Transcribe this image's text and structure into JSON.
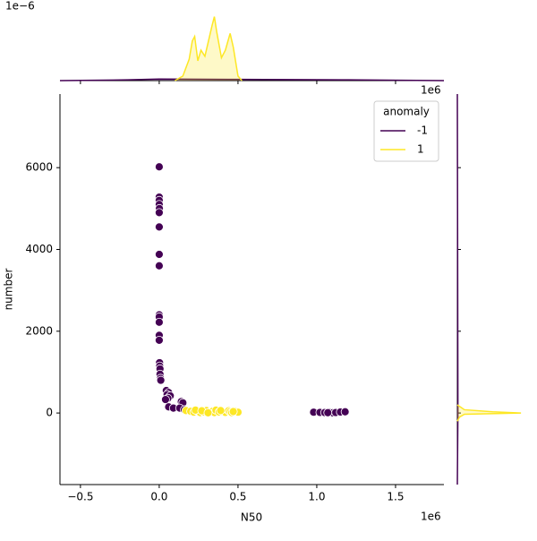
{
  "chart_data": {
    "type": "scatter",
    "xlabel": "N50",
    "ylabel": "number",
    "x_offset_label": "1e6",
    "top_offset_label": "1e−6",
    "right_offset_label": "1e6",
    "xlim": [
      -630000,
      1807000
    ],
    "ylim": [
      -1750,
      7800
    ],
    "xticks": [
      {
        "value": -500000,
        "label": "−0.5"
      },
      {
        "value": 0,
        "label": "0.0"
      },
      {
        "value": 500000,
        "label": "0.5"
      },
      {
        "value": 1000000,
        "label": "1.0"
      },
      {
        "value": 1500000,
        "label": "1.5"
      }
    ],
    "yticks": [
      0,
      2000,
      4000,
      6000
    ],
    "legend_title": "anomaly",
    "legend": "upper right",
    "series": [
      {
        "name": "-1",
        "color": "#440154",
        "x": [
          0,
          0,
          0,
          0,
          1000,
          0,
          0,
          0,
          0,
          0,
          0,
          0,
          0,
          0,
          2000,
          3000,
          5000,
          5000,
          8000,
          10000,
          45000,
          60000,
          50000,
          70000,
          55000,
          40000,
          60000,
          90000,
          140000,
          150000,
          130000,
          160000,
          980000,
          1020000,
          1050000,
          1080000,
          1100000,
          1120000,
          1150000,
          1180000,
          1070000
        ],
        "values": [
          6020,
          5280,
          5200,
          5100,
          5000,
          4900,
          4550,
          3880,
          3600,
          2400,
          2350,
          2220,
          1900,
          1780,
          1230,
          1150,
          1080,
          950,
          850,
          800,
          550,
          500,
          450,
          420,
          360,
          330,
          150,
          120,
          280,
          250,
          120,
          80,
          20,
          15,
          10,
          18,
          5,
          12,
          25,
          30,
          8
        ]
      },
      {
        "name": "1",
        "color": "#fde725",
        "x": [
          170000,
          200000,
          220000,
          240000,
          260000,
          280000,
          300000,
          320000,
          340000,
          350000,
          360000,
          380000,
          400000,
          420000,
          440000,
          450000,
          460000,
          480000,
          500000,
          230000,
          270000,
          310000,
          390000,
          470000
        ],
        "values": [
          60,
          40,
          20,
          50,
          10,
          30,
          60,
          20,
          45,
          10,
          70,
          25,
          40,
          15,
          55,
          30,
          10,
          45,
          20,
          70,
          55,
          5,
          60,
          35
        ]
      }
    ],
    "top_marginal": {
      "ylim": [
        0,
        5
      ],
      "series": [
        {
          "name": "-1",
          "color": "#440154",
          "x": [
            -630000,
            -200000,
            0,
            500000,
            1000000,
            1200000,
            1807000
          ],
          "values": [
            0,
            0.05,
            0.1,
            0.08,
            0.06,
            0.05,
            0
          ]
        },
        {
          "name": "1",
          "color": "#fde725",
          "x": [
            100000,
            150000,
            190000,
            210000,
            225000,
            245000,
            265000,
            290000,
            335000,
            350000,
            365000,
            395000,
            420000,
            450000,
            470000,
            500000,
            525000
          ],
          "values": [
            0,
            0.3,
            1.4,
            2.6,
            2.9,
            1.3,
            2.0,
            1.6,
            3.6,
            4.2,
            3.2,
            1.5,
            2.0,
            3.1,
            2.2,
            0.3,
            0
          ]
        }
      ]
    },
    "right_marginal": {
      "xlim": [
        0,
        10
      ],
      "series": [
        {
          "name": "-1",
          "color": "#440154",
          "y": [
            -1750,
            0,
            2000,
            4000,
            6000,
            7800
          ],
          "values": [
            0,
            0.08,
            0.06,
            0.04,
            0.02,
            0
          ]
        },
        {
          "name": "1",
          "color": "#fde725",
          "y": [
            -200,
            -100,
            -30,
            0,
            30,
            80,
            200
          ],
          "values": [
            0,
            0.3,
            1,
            9,
            5,
            1,
            0
          ]
        }
      ]
    }
  }
}
